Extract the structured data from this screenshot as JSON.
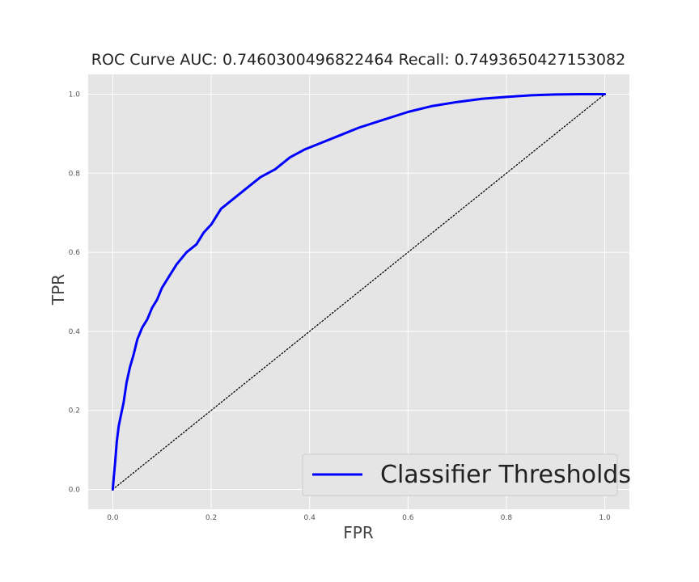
{
  "chart_data": {
    "type": "line",
    "title": "ROC Curve AUC: 0.7460300496822464 Recall: 0.7493650427153082",
    "xlabel": "FPR",
    "ylabel": "TPR",
    "xlim": [
      -0.05,
      1.05
    ],
    "ylim": [
      -0.05,
      1.05
    ],
    "xticks": [
      0.0,
      0.2,
      0.4,
      0.6,
      0.8,
      1.0
    ],
    "yticks": [
      0.0,
      0.2,
      0.4,
      0.6,
      0.8,
      1.0
    ],
    "xtick_labels": [
      "0.0",
      "0.2",
      "0.4",
      "0.6",
      "0.8",
      "1.0"
    ],
    "ytick_labels": [
      "0.0",
      "0.2",
      "0.4",
      "0.6",
      "0.8",
      "1.0"
    ],
    "grid": true,
    "legend_position": "bottom-right",
    "series": [
      {
        "name": "Classifier Thresholds",
        "color": "#0000ff",
        "style": "solid",
        "x": [
          0.0,
          0.002,
          0.005,
          0.008,
          0.012,
          0.017,
          0.022,
          0.028,
          0.035,
          0.042,
          0.05,
          0.06,
          0.07,
          0.08,
          0.09,
          0.1,
          0.115,
          0.13,
          0.15,
          0.17,
          0.185,
          0.2,
          0.22,
          0.25,
          0.28,
          0.3,
          0.33,
          0.36,
          0.39,
          0.42,
          0.46,
          0.5,
          0.55,
          0.6,
          0.65,
          0.7,
          0.75,
          0.8,
          0.85,
          0.9,
          0.95,
          1.0
        ],
        "y": [
          0.0,
          0.03,
          0.07,
          0.12,
          0.16,
          0.19,
          0.22,
          0.27,
          0.31,
          0.34,
          0.38,
          0.41,
          0.43,
          0.46,
          0.48,
          0.51,
          0.54,
          0.57,
          0.6,
          0.62,
          0.65,
          0.67,
          0.71,
          0.74,
          0.77,
          0.79,
          0.81,
          0.84,
          0.86,
          0.875,
          0.895,
          0.915,
          0.935,
          0.955,
          0.97,
          0.98,
          0.988,
          0.993,
          0.997,
          0.999,
          1.0,
          1.0
        ]
      },
      {
        "name": "",
        "color": "#000000",
        "style": "dotted",
        "x": [
          0.0,
          1.0
        ],
        "y": [
          0.0,
          1.0
        ]
      }
    ]
  },
  "colors": {
    "plot_background": "#e5e5e5",
    "grid": "#ffffff",
    "roc_line": "#0000ff",
    "diagonal": "#000000"
  }
}
